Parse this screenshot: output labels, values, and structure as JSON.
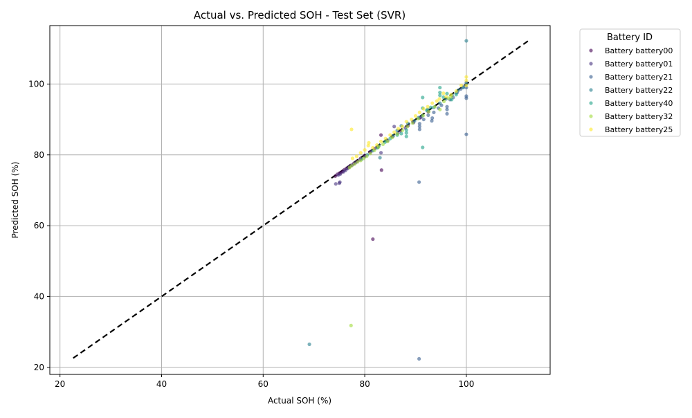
{
  "chart_data": {
    "type": "scatter",
    "title": "Actual vs. Predicted SOH - Test Set (SVR)",
    "xlabel": "Actual SOH (%)",
    "ylabel": "Predicted SOH (%)",
    "xlim": [
      18,
      116.5
    ],
    "ylim": [
      18,
      116.5
    ],
    "xticks": [
      20,
      40,
      60,
      80,
      100
    ],
    "yticks": [
      20,
      40,
      60,
      80,
      100
    ],
    "grid": true,
    "reference_line": {
      "x": [
        22.6,
        112.3
      ],
      "y": [
        22.6,
        112.3
      ],
      "style": "dashed",
      "color": "#000000"
    },
    "legend": {
      "title": "Battery ID",
      "placement": "outside-right"
    },
    "series": [
      {
        "name": "Battery battery00",
        "color": "#440154",
        "points": [
          [
            74.2,
            74.0
          ],
          [
            74.6,
            74.5
          ],
          [
            75.0,
            74.8
          ],
          [
            75.3,
            75.0
          ],
          [
            75.6,
            75.3
          ],
          [
            76.0,
            75.8
          ],
          [
            76.4,
            76.2
          ],
          [
            76.8,
            76.5
          ],
          [
            77.2,
            77.0
          ],
          [
            77.8,
            77.5
          ],
          [
            78.5,
            78.2
          ],
          [
            79.2,
            79.0
          ],
          [
            80.0,
            79.8
          ],
          [
            81.0,
            80.8
          ],
          [
            82.0,
            81.8
          ],
          [
            83.2,
            85.6
          ],
          [
            83.3,
            75.7
          ],
          [
            81.6,
            56.2
          ],
          [
            85.5,
            85.2
          ],
          [
            87.0,
            86.8
          ],
          [
            88.5,
            88.2
          ],
          [
            89.5,
            89.4
          ],
          [
            91.0,
            90.6
          ],
          [
            92.5,
            92.2
          ]
        ]
      },
      {
        "name": "Battery battery01",
        "color": "#46327e",
        "points": [
          [
            74.3,
            71.8
          ],
          [
            75.0,
            72.0
          ],
          [
            75.1,
            72.3
          ],
          [
            74.8,
            74.3
          ],
          [
            75.2,
            74.6
          ],
          [
            75.8,
            75.2
          ],
          [
            76.2,
            75.6
          ],
          [
            76.6,
            76.1
          ],
          [
            77.0,
            76.6
          ],
          [
            77.5,
            77.1
          ],
          [
            78.2,
            77.8
          ],
          [
            79.0,
            78.6
          ],
          [
            80.0,
            79.5
          ],
          [
            81.2,
            80.9
          ],
          [
            82.6,
            82.2
          ],
          [
            83.2,
            80.6
          ],
          [
            84.5,
            84.0
          ],
          [
            85.8,
            88.0
          ],
          [
            86.5,
            86.1
          ],
          [
            88.0,
            87.6
          ],
          [
            89.6,
            89.1
          ],
          [
            90.8,
            90.4
          ]
        ]
      },
      {
        "name": "Battery battery21",
        "color": "#365c8d",
        "points": [
          [
            90.7,
            72.3
          ],
          [
            90.7,
            22.4
          ],
          [
            100.0,
            85.8
          ],
          [
            90.8,
            87.2
          ],
          [
            90.8,
            88.0
          ],
          [
            90.8,
            88.8
          ],
          [
            91.6,
            90.0
          ],
          [
            92.5,
            91.2
          ],
          [
            93.2,
            89.6
          ],
          [
            93.3,
            90.4
          ],
          [
            93.6,
            92.0
          ],
          [
            94.5,
            93.2
          ],
          [
            95.1,
            94.0
          ],
          [
            96.2,
            92.8
          ],
          [
            96.2,
            93.6
          ],
          [
            96.2,
            91.6
          ],
          [
            96.8,
            95.6
          ],
          [
            97.4,
            96.2
          ],
          [
            98.2,
            97.6
          ],
          [
            98.9,
            98.6
          ],
          [
            100.0,
            96.0
          ],
          [
            100.0,
            96.6
          ],
          [
            100.0,
            99.0
          ],
          [
            100.0,
            100.4
          ],
          [
            99.4,
            99.2
          ]
        ]
      },
      {
        "name": "Battery battery22",
        "color": "#277f8e",
        "points": [
          [
            69.1,
            26.5
          ],
          [
            100.0,
            112.2
          ],
          [
            83.0,
            79.2
          ],
          [
            79.4,
            78.8
          ],
          [
            80.5,
            80.0
          ],
          [
            81.6,
            81.2
          ],
          [
            82.8,
            82.6
          ],
          [
            84.2,
            84.0
          ],
          [
            85.6,
            85.4
          ],
          [
            86.4,
            86.9
          ],
          [
            87.2,
            88.2
          ],
          [
            88.5,
            88.9
          ],
          [
            89.8,
            89.6
          ],
          [
            90.6,
            90.5
          ],
          [
            91.3,
            91.0
          ],
          [
            92.4,
            92.8
          ],
          [
            93.6,
            93.4
          ],
          [
            94.8,
            94.6
          ],
          [
            96.0,
            95.8
          ],
          [
            97.2,
            96.9
          ],
          [
            98.0,
            97.5
          ],
          [
            98.4,
            98.2
          ],
          [
            99.4,
            99.0
          ],
          [
            100.0,
            100.0
          ]
        ]
      },
      {
        "name": "Battery battery40",
        "color": "#1fa187",
        "points": [
          [
            91.4,
            96.2
          ],
          [
            91.4,
            82.1
          ],
          [
            94.8,
            99.0
          ],
          [
            94.8,
            97.6
          ],
          [
            94.8,
            96.8
          ],
          [
            95.5,
            96.3
          ],
          [
            96.2,
            97.3
          ],
          [
            97.1,
            95.6
          ],
          [
            98.0,
            97.0
          ],
          [
            91.4,
            93.2
          ],
          [
            92.2,
            92.6
          ],
          [
            93.0,
            93.4
          ],
          [
            88.2,
            85.2
          ],
          [
            88.2,
            86.2
          ],
          [
            88.2,
            87.0
          ],
          [
            87.2,
            86.0
          ],
          [
            86.4,
            85.6
          ],
          [
            85.0,
            84.6
          ],
          [
            84.0,
            83.6
          ],
          [
            82.5,
            82.0
          ]
        ]
      },
      {
        "name": "Battery battery32",
        "color": "#a0da39",
        "points": [
          [
            77.3,
            31.8
          ],
          [
            77.0,
            76.4
          ],
          [
            77.4,
            76.9
          ],
          [
            78.0,
            77.4
          ],
          [
            78.6,
            78.0
          ],
          [
            79.2,
            78.4
          ],
          [
            79.8,
            79.0
          ],
          [
            80.4,
            79.6
          ],
          [
            81.1,
            80.4
          ],
          [
            81.9,
            81.3
          ],
          [
            82.7,
            82.2
          ],
          [
            83.6,
            83.0
          ],
          [
            84.5,
            83.8
          ],
          [
            85.4,
            84.9
          ],
          [
            86.4,
            85.9
          ],
          [
            87.4,
            86.9
          ],
          [
            88.4,
            88.0
          ],
          [
            89.4,
            89.0
          ],
          [
            90.5,
            90.2
          ],
          [
            91.5,
            91.1
          ],
          [
            92.6,
            92.2
          ],
          [
            93.8,
            93.6
          ],
          [
            94.8,
            92.8
          ],
          [
            95.6,
            95.1
          ],
          [
            96.5,
            96.0
          ],
          [
            97.0,
            96.4
          ]
        ]
      },
      {
        "name": "Battery battery25",
        "color": "#fde725",
        "points": [
          [
            77.4,
            87.2
          ],
          [
            77.6,
            79.0
          ],
          [
            78.4,
            79.6
          ],
          [
            79.2,
            80.6
          ],
          [
            80.0,
            81.4
          ],
          [
            80.7,
            82.6
          ],
          [
            80.8,
            83.4
          ],
          [
            81.6,
            82.0
          ],
          [
            82.4,
            82.8
          ],
          [
            83.2,
            83.8
          ],
          [
            84.1,
            84.6
          ],
          [
            85.0,
            85.6
          ],
          [
            85.8,
            86.4
          ],
          [
            86.6,
            87.4
          ],
          [
            87.4,
            88.0
          ],
          [
            88.2,
            89.4
          ],
          [
            89.2,
            90.0
          ],
          [
            90.0,
            91.0
          ],
          [
            90.8,
            92.0
          ],
          [
            91.6,
            93.0
          ],
          [
            92.4,
            93.6
          ],
          [
            93.3,
            94.6
          ],
          [
            94.2,
            95.2
          ],
          [
            94.7,
            95.8
          ],
          [
            95.5,
            97.4
          ],
          [
            96.0,
            96.4
          ],
          [
            97.0,
            97.0
          ],
          [
            98.0,
            98.0
          ],
          [
            99.0,
            99.6
          ],
          [
            100.0,
            101.0
          ],
          [
            100.0,
            102.0
          ],
          [
            100.0,
            99.6
          ]
        ]
      }
    ]
  }
}
